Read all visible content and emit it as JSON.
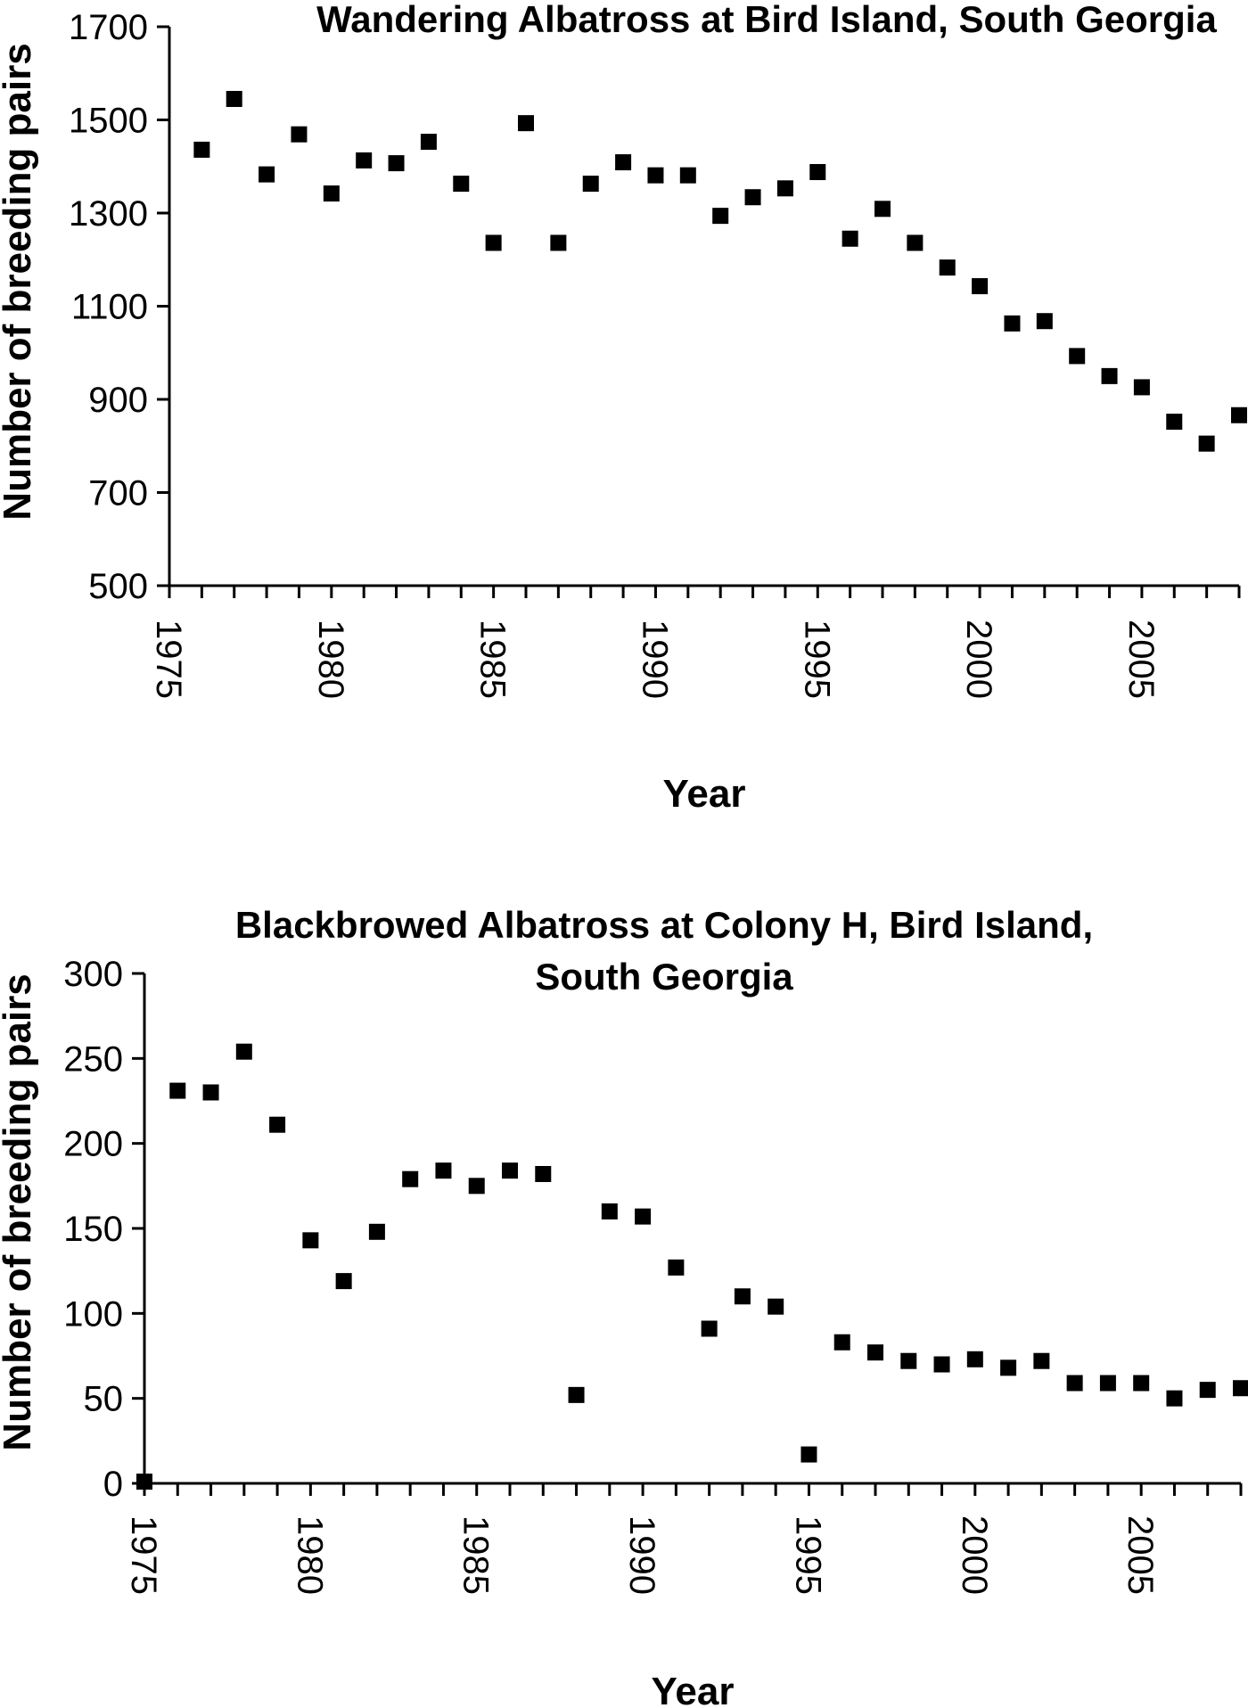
{
  "chart_data": [
    {
      "type": "scatter",
      "title": [
        "Wandering Albatross at Bird Island, South Georgia"
      ],
      "xlabel": "Year",
      "ylabel": "Number of breeding pairs",
      "xlim": [
        1975,
        2008
      ],
      "ylim": [
        500,
        1700
      ],
      "yticks": [
        500,
        700,
        900,
        1100,
        1300,
        1500,
        1700
      ],
      "xticks": [
        1975,
        1980,
        1985,
        1990,
        1995,
        2000,
        2005
      ],
      "grid": false,
      "marker": "square",
      "series": [
        {
          "name": "Wandering Albatross",
          "x": [
            1976,
            1977,
            1978,
            1979,
            1980,
            1981,
            1982,
            1983,
            1984,
            1985,
            1986,
            1987,
            1988,
            1989,
            1990,
            1991,
            1992,
            1993,
            1994,
            1995,
            1996,
            1997,
            1998,
            1999,
            2000,
            2001,
            2002,
            2003,
            2004,
            2005,
            2006,
            2007,
            2008
          ],
          "y": [
            1436,
            1545,
            1383,
            1469,
            1342,
            1413,
            1407,
            1453,
            1363,
            1236,
            1493,
            1236,
            1363,
            1409,
            1381,
            1381,
            1294,
            1334,
            1353,
            1388,
            1245,
            1309,
            1236,
            1183,
            1143,
            1063,
            1068,
            993,
            950,
            926,
            852,
            805,
            866
          ]
        }
      ]
    },
    {
      "type": "scatter",
      "title": [
        "Blackbrowed Albatross at Colony H, Bird Island,",
        "South Georgia"
      ],
      "xlabel": "Year",
      "ylabel": "Number of breeding pairs",
      "xlim": [
        1975,
        2008
      ],
      "ylim": [
        0,
        300
      ],
      "yticks": [
        0,
        50,
        100,
        150,
        200,
        250,
        300
      ],
      "xticks": [
        1975,
        1980,
        1985,
        1990,
        1995,
        2000,
        2005
      ],
      "grid": false,
      "marker": "square",
      "series": [
        {
          "name": "Blackbrowed Albatross",
          "x": [
            1975,
            1976,
            1977,
            1978,
            1979,
            1980,
            1981,
            1982,
            1983,
            1984,
            1985,
            1986,
            1987,
            1988,
            1989,
            1990,
            1991,
            1992,
            1993,
            1994,
            1995,
            1996,
            1997,
            1998,
            1999,
            2000,
            2001,
            2002,
            2003,
            2004,
            2005,
            2006,
            2007,
            2008
          ],
          "y": [
            1,
            231,
            230,
            254,
            211,
            143,
            119,
            148,
            179,
            184,
            175,
            184,
            182,
            52,
            160,
            157,
            127,
            91,
            110,
            104,
            17,
            83,
            77,
            72,
            70,
            73,
            68,
            72,
            59,
            59,
            59,
            50,
            55,
            56
          ]
        }
      ]
    }
  ]
}
